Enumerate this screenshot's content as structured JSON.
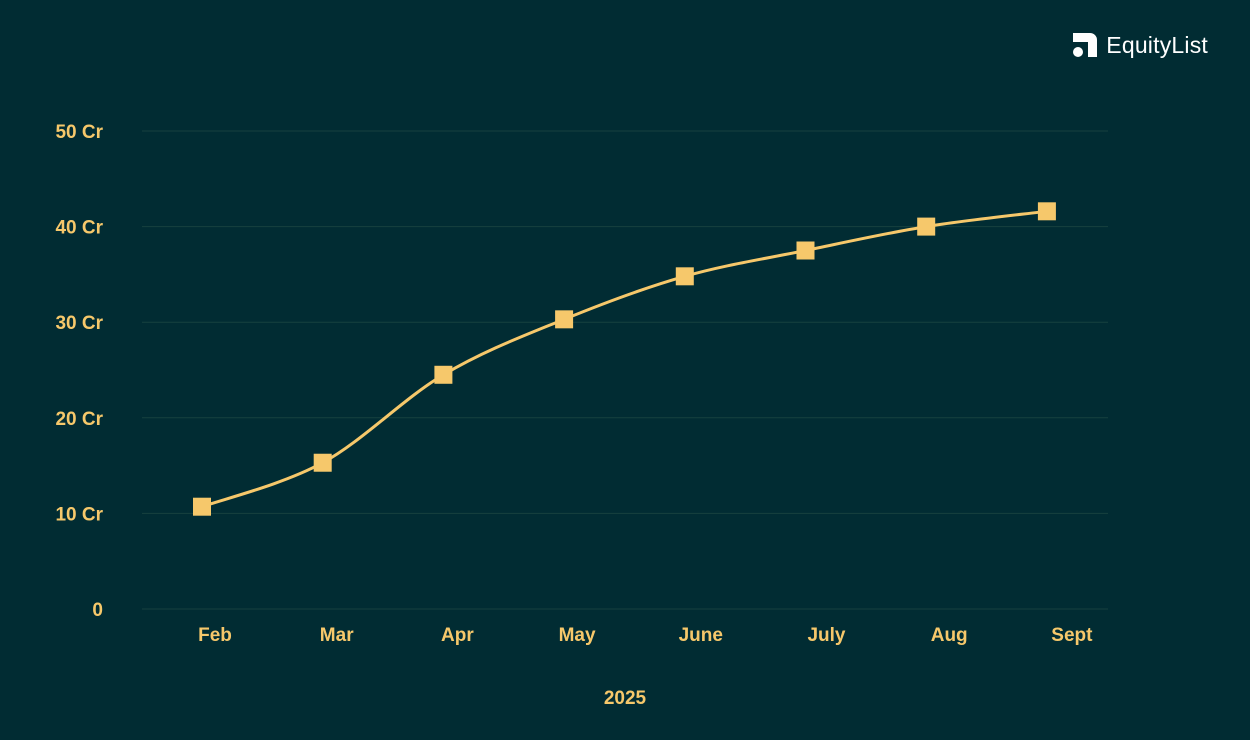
{
  "brand": {
    "name": "EquityList",
    "icon": "equitylist-logo-icon"
  },
  "colors": {
    "background": "#012c33",
    "gridline": "#17413f",
    "series": "#f6c86b",
    "label": "#f6c86b",
    "brand_text": "#ffffff"
  },
  "chart_data": {
    "type": "line",
    "title": "",
    "xlabel": "2025",
    "ylabel": "",
    "categories": [
      "Feb",
      "Mar",
      "Apr",
      "May",
      "June",
      "July",
      "Aug",
      "Sept"
    ],
    "series": [
      {
        "values": [
          10.7,
          15.3,
          24.5,
          30.3,
          34.8,
          37.5,
          40.0,
          41.6
        ],
        "marker": "square"
      }
    ],
    "yticks": [
      0,
      10,
      20,
      30,
      40,
      50
    ],
    "ytick_labels": [
      "0",
      "10 Cr",
      "20 Cr",
      "30 Cr",
      "40 Cr",
      "50 Cr"
    ],
    "ylim": [
      0,
      50
    ],
    "grid": true,
    "legend": "none"
  }
}
